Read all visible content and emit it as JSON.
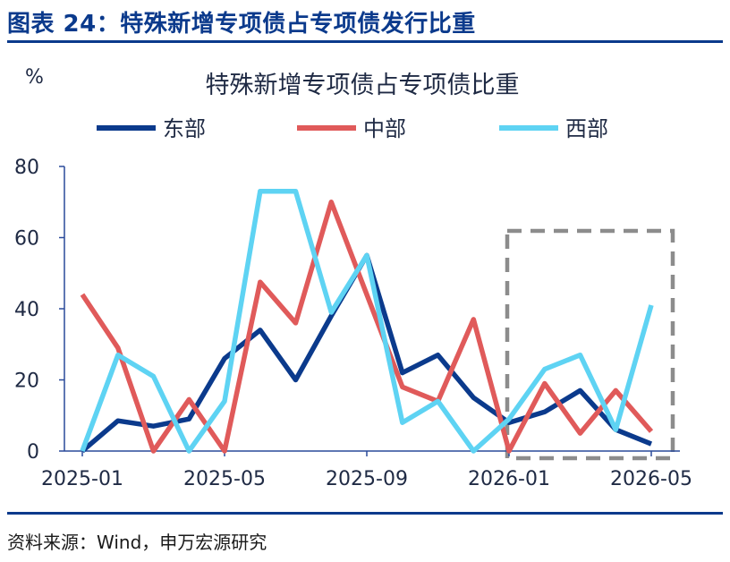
{
  "header": {
    "figure_title": "图表 24：特殊新增专项债占专项债发行比重"
  },
  "footer": {
    "source": "资料来源：Wind，申万宏源研究"
  },
  "colors": {
    "brand": "#0b3a8c",
    "east": "#0b3a8c",
    "central": "#e05a5a",
    "west": "#5ed3f3",
    "highlight_box": "#8c8c8c",
    "axis": "#2a4a9a"
  },
  "chart_data": {
    "type": "line",
    "title": "特殊新增专项债占专项债比重",
    "ylabel": "%",
    "xlabel": "",
    "ylim": [
      0,
      80
    ],
    "yticks": [
      0,
      20,
      40,
      60,
      80
    ],
    "x": [
      "2025-01",
      "2025-02",
      "2025-03",
      "2025-04",
      "2025-05",
      "2025-06",
      "2025-07",
      "2025-08",
      "2025-09",
      "2025-10",
      "2025-11",
      "2025-12",
      "2026-01",
      "2026-02",
      "2026-03",
      "2026-04",
      "2026-05"
    ],
    "xtick_labels": [
      "2025-01",
      "2025-05",
      "2025-09",
      "2026-01",
      "2026-05"
    ],
    "legend_position": "top",
    "grid": false,
    "series": [
      {
        "name": "东部",
        "color_key": "east",
        "values": [
          0,
          8.5,
          7,
          9,
          26,
          34,
          20,
          38,
          55,
          22,
          27,
          15,
          8,
          11,
          17,
          6,
          2
        ]
      },
      {
        "name": "中部",
        "color_key": "central",
        "values": [
          44,
          29,
          0,
          14.5,
          0,
          47.5,
          36,
          70,
          44,
          18,
          14,
          37,
          0,
          19,
          5,
          17,
          5.5
        ]
      },
      {
        "name": "西部",
        "color_key": "west",
        "values": [
          0,
          27,
          21,
          0,
          14,
          73,
          73,
          39,
          55,
          8,
          14,
          0,
          9,
          23,
          27,
          6,
          41
        ]
      }
    ],
    "highlight_range": [
      "2026-01",
      "2026-05"
    ]
  }
}
